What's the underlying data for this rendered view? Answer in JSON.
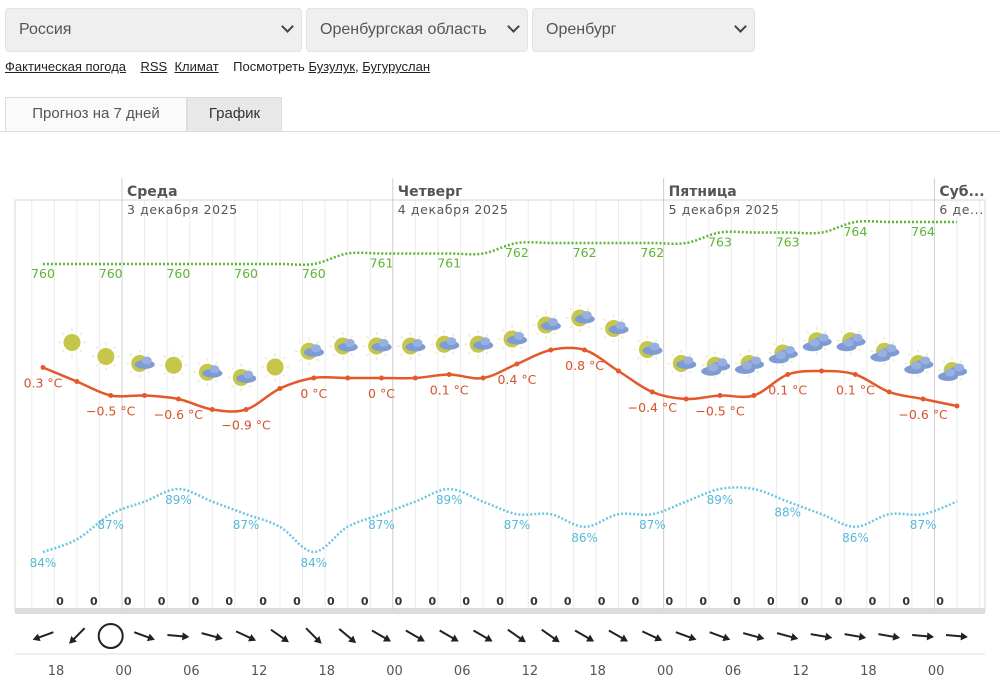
{
  "selects": [
    {
      "value": "Россия"
    },
    {
      "value": "Оренбургская область"
    },
    {
      "value": "Оренбург"
    }
  ],
  "links": {
    "actual": "Фактическая погода",
    "rss": "RSS",
    "climate": "Климат",
    "see_label": "Посмотреть",
    "city1": "Бузулук",
    "city2": "Бугуруслан"
  },
  "tabs": [
    {
      "label": "Прогноз на 7 дней",
      "active": false
    },
    {
      "label": "График",
      "active": true
    }
  ],
  "colors": {
    "temperature": "#e4582a",
    "pressure": "#5cb533",
    "humidity": "#6cc6e2"
  },
  "chart_data": {
    "type": "line",
    "days": [
      {
        "name": "Среда",
        "date": "3 декабря 2025"
      },
      {
        "name": "Четверг",
        "date": "4 декабря 2025"
      },
      {
        "name": "Пятница",
        "date": "5 декабря 2025"
      },
      {
        "name": "Суб...",
        "date": "6 де..."
      }
    ],
    "time_labels": [
      "18",
      "00",
      "06",
      "12",
      "18",
      "00",
      "06",
      "12",
      "18",
      "00",
      "06",
      "12",
      "18",
      "00"
    ],
    "temperature_c": [
      0.3,
      -0.1,
      -0.5,
      -0.5,
      -0.6,
      -0.9,
      -0.9,
      -0.3,
      0,
      0,
      0,
      0,
      0.1,
      0,
      0.4,
      0.8,
      0.8,
      0.2,
      -0.4,
      -0.6,
      -0.5,
      -0.5,
      0.1,
      0.2,
      0.1,
      -0.4,
      -0.6,
      -0.8
    ],
    "pressure_mmhg": [
      760,
      760,
      760,
      760,
      760,
      760,
      760,
      760,
      760,
      761,
      761,
      761,
      761,
      761,
      762,
      762,
      762,
      762,
      762,
      762,
      763,
      763,
      763,
      763,
      764,
      764,
      764,
      764
    ],
    "humidity_pct": [
      84,
      85,
      87,
      88,
      89,
      88,
      87,
      86,
      84,
      86,
      87,
      88,
      89,
      88,
      87,
      87,
      86,
      87,
      87,
      88,
      89,
      89,
      88,
      87,
      86,
      87,
      87,
      88
    ],
    "precipitation_mm": [
      0,
      0,
      0,
      0,
      0,
      0,
      0,
      0,
      0,
      0,
      0,
      0,
      0,
      0,
      0,
      0,
      0,
      0,
      0,
      0,
      0,
      0,
      0,
      0,
      0,
      0,
      0
    ],
    "weather_icons": [
      "sun",
      "sun",
      "sun-cloud",
      "sun",
      "sun-cloud",
      "sun-cloud",
      "sun",
      "sun-cloud",
      "sun-cloud",
      "sun-cloud",
      "sun-cloud",
      "sun-cloud",
      "sun-cloud",
      "sun-cloud",
      "sun-cloud",
      "sun-cloud",
      "sun-cloud",
      "sun-cloud",
      "sun-cloud",
      "clouds",
      "clouds",
      "clouds",
      "clouds",
      "clouds",
      "clouds",
      "clouds",
      "clouds"
    ],
    "wind_arrow_direction_deg": [
      160,
      135,
      null,
      20,
      5,
      15,
      25,
      35,
      45,
      40,
      30,
      30,
      30,
      30,
      35,
      35,
      30,
      30,
      25,
      20,
      20,
      15,
      15,
      10,
      10,
      10,
      5,
      5
    ],
    "grid": true
  }
}
